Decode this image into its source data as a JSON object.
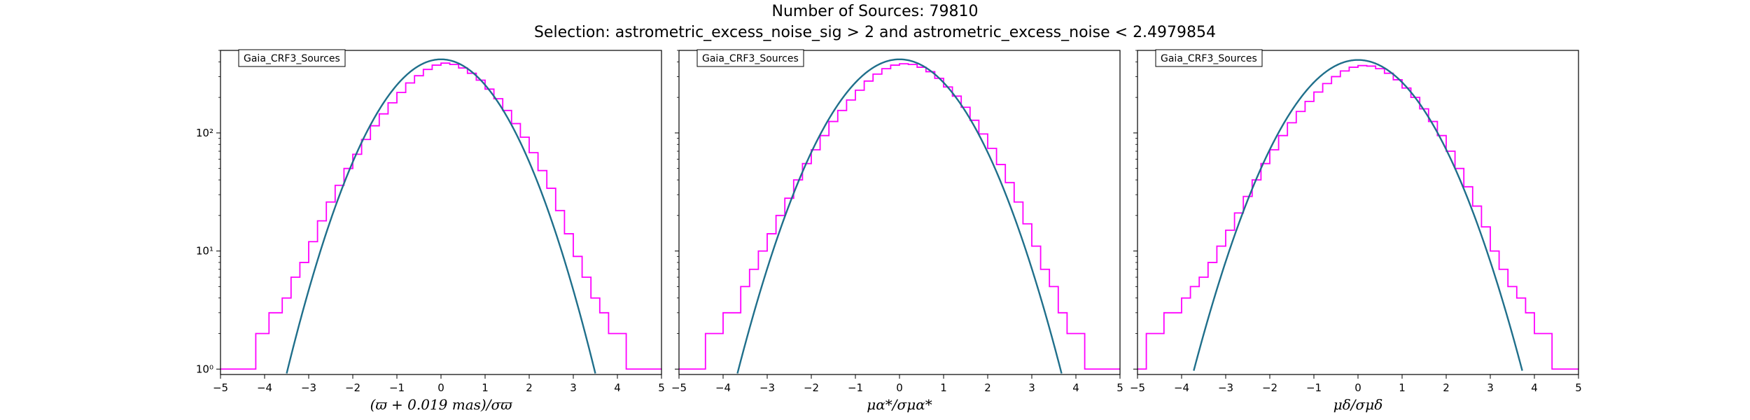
{
  "figure": {
    "title": "Number of Sources: 79810",
    "subtitle": "Selection: astrometric_excess_noise_sig > 2 and astrometric_excess_noise < 2.4979854"
  },
  "colors": {
    "histogram": "#ff00ff",
    "model": "#1f6f8b"
  },
  "chart_data": [
    {
      "type": "histogram",
      "legend": "Gaia_CRF3_Sources",
      "xlabel": "(ϖ + 0.019 mas)/σϖ",
      "xlim": [
        -5,
        5
      ],
      "ylim": [
        0.9,
        500
      ],
      "yscale": "log",
      "x_ticks": [
        "−5",
        "−4",
        "−3",
        "−2",
        "−1",
        "0",
        "1",
        "2",
        "3",
        "4",
        "5"
      ],
      "y_ticks": [
        "10⁰",
        "10¹",
        "10²"
      ],
      "histogram_points": [
        [
          -5.0,
          1
        ],
        [
          -4.9,
          1
        ],
        [
          -4.6,
          1
        ],
        [
          -4.4,
          1
        ],
        [
          -4.2,
          2
        ],
        [
          -4.0,
          2
        ],
        [
          -3.9,
          3
        ],
        [
          -3.8,
          3
        ],
        [
          -3.6,
          4
        ],
        [
          -3.4,
          6
        ],
        [
          -3.2,
          8
        ],
        [
          -3.0,
          12
        ],
        [
          -2.8,
          18
        ],
        [
          -2.6,
          26
        ],
        [
          -2.4,
          36
        ],
        [
          -2.2,
          50
        ],
        [
          -2.0,
          66
        ],
        [
          -1.8,
          88
        ],
        [
          -1.6,
          115
        ],
        [
          -1.4,
          145
        ],
        [
          -1.2,
          180
        ],
        [
          -1.0,
          220
        ],
        [
          -0.8,
          265
        ],
        [
          -0.6,
          305
        ],
        [
          -0.4,
          345
        ],
        [
          -0.2,
          375
        ],
        [
          0.0,
          390
        ],
        [
          0.2,
          380
        ],
        [
          0.4,
          355
        ],
        [
          0.6,
          320
        ],
        [
          0.8,
          280
        ],
        [
          1.0,
          235
        ],
        [
          1.2,
          195
        ],
        [
          1.4,
          155
        ],
        [
          1.6,
          120
        ],
        [
          1.8,
          92
        ],
        [
          2.0,
          68
        ],
        [
          2.2,
          48
        ],
        [
          2.4,
          34
        ],
        [
          2.6,
          22
        ],
        [
          2.8,
          14
        ],
        [
          3.0,
          9
        ],
        [
          3.2,
          6
        ],
        [
          3.4,
          4
        ],
        [
          3.6,
          3
        ],
        [
          3.8,
          2
        ],
        [
          4.0,
          2
        ],
        [
          4.2,
          1
        ],
        [
          4.4,
          1
        ],
        [
          4.7,
          1
        ],
        [
          5.0,
          1
        ]
      ],
      "model": {
        "mean": 0,
        "sigma": 1.0,
        "peak": 420
      }
    },
    {
      "type": "histogram",
      "legend": "Gaia_CRF3_Sources",
      "xlabel": "μα*/σμα*",
      "xlim": [
        -5,
        5
      ],
      "ylim": [
        0.9,
        500
      ],
      "yscale": "log",
      "x_ticks": [
        "−5",
        "−4",
        "−3",
        "−2",
        "−1",
        "0",
        "1",
        "2",
        "3",
        "4",
        "5"
      ],
      "y_ticks": [
        "10⁰",
        "10¹",
        "10²"
      ],
      "histogram_points": [
        [
          -5.0,
          1
        ],
        [
          -4.8,
          1
        ],
        [
          -4.6,
          1
        ],
        [
          -4.4,
          2
        ],
        [
          -4.2,
          2
        ],
        [
          -4.0,
          3
        ],
        [
          -3.8,
          3
        ],
        [
          -3.6,
          5
        ],
        [
          -3.4,
          7
        ],
        [
          -3.2,
          10
        ],
        [
          -3.0,
          14
        ],
        [
          -2.8,
          20
        ],
        [
          -2.6,
          28
        ],
        [
          -2.4,
          40
        ],
        [
          -2.2,
          55
        ],
        [
          -2.0,
          72
        ],
        [
          -1.8,
          95
        ],
        [
          -1.6,
          125
        ],
        [
          -1.4,
          155
        ],
        [
          -1.2,
          190
        ],
        [
          -1.0,
          230
        ],
        [
          -0.8,
          275
        ],
        [
          -0.6,
          315
        ],
        [
          -0.4,
          350
        ],
        [
          -0.2,
          375
        ],
        [
          0.0,
          385
        ],
        [
          0.2,
          380
        ],
        [
          0.4,
          360
        ],
        [
          0.6,
          330
        ],
        [
          0.8,
          290
        ],
        [
          1.0,
          245
        ],
        [
          1.2,
          205
        ],
        [
          1.4,
          165
        ],
        [
          1.6,
          128
        ],
        [
          1.8,
          98
        ],
        [
          2.0,
          74
        ],
        [
          2.2,
          54
        ],
        [
          2.4,
          38
        ],
        [
          2.6,
          26
        ],
        [
          2.8,
          17
        ],
        [
          3.0,
          11
        ],
        [
          3.2,
          7
        ],
        [
          3.4,
          5
        ],
        [
          3.6,
          3
        ],
        [
          3.8,
          2
        ],
        [
          4.0,
          2
        ],
        [
          4.2,
          1
        ],
        [
          4.5,
          1
        ],
        [
          4.8,
          1
        ],
        [
          5.0,
          1
        ]
      ],
      "model": {
        "mean": 0,
        "sigma": 1.05,
        "peak": 420
      }
    },
    {
      "type": "histogram",
      "legend": "Gaia_CRF3_Sources",
      "xlabel": "μδ/σμδ",
      "xlim": [
        -5,
        5
      ],
      "ylim": [
        0.9,
        500
      ],
      "yscale": "log",
      "x_ticks": [
        "−5",
        "−4",
        "−3",
        "−2",
        "−1",
        "0",
        "1",
        "2",
        "3",
        "4",
        "5"
      ],
      "y_ticks": [
        "10⁰",
        "10¹",
        "10²"
      ],
      "histogram_points": [
        [
          -5.0,
          1
        ],
        [
          -4.8,
          2
        ],
        [
          -4.6,
          2
        ],
        [
          -4.4,
          3
        ],
        [
          -4.2,
          3
        ],
        [
          -4.0,
          4
        ],
        [
          -3.8,
          5
        ],
        [
          -3.6,
          6
        ],
        [
          -3.4,
          8
        ],
        [
          -3.2,
          11
        ],
        [
          -3.0,
          15
        ],
        [
          -2.8,
          21
        ],
        [
          -2.6,
          29
        ],
        [
          -2.4,
          40
        ],
        [
          -2.2,
          55
        ],
        [
          -2.0,
          72
        ],
        [
          -1.8,
          95
        ],
        [
          -1.6,
          122
        ],
        [
          -1.4,
          152
        ],
        [
          -1.2,
          185
        ],
        [
          -1.0,
          222
        ],
        [
          -0.8,
          262
        ],
        [
          -0.6,
          300
        ],
        [
          -0.4,
          335
        ],
        [
          -0.2,
          360
        ],
        [
          0.0,
          372
        ],
        [
          0.2,
          368
        ],
        [
          0.4,
          350
        ],
        [
          0.6,
          320
        ],
        [
          0.8,
          282
        ],
        [
          1.0,
          240
        ],
        [
          1.2,
          200
        ],
        [
          1.4,
          160
        ],
        [
          1.6,
          125
        ],
        [
          1.8,
          95
        ],
        [
          2.0,
          70
        ],
        [
          2.2,
          50
        ],
        [
          2.4,
          35
        ],
        [
          2.6,
          24
        ],
        [
          2.8,
          16
        ],
        [
          3.0,
          10
        ],
        [
          3.2,
          7
        ],
        [
          3.4,
          5
        ],
        [
          3.6,
          4
        ],
        [
          3.8,
          3
        ],
        [
          4.0,
          2
        ],
        [
          4.2,
          2
        ],
        [
          4.4,
          1
        ],
        [
          4.7,
          1
        ],
        [
          5.0,
          1
        ]
      ],
      "model": {
        "mean": 0,
        "sigma": 1.07,
        "peak": 415
      }
    }
  ]
}
